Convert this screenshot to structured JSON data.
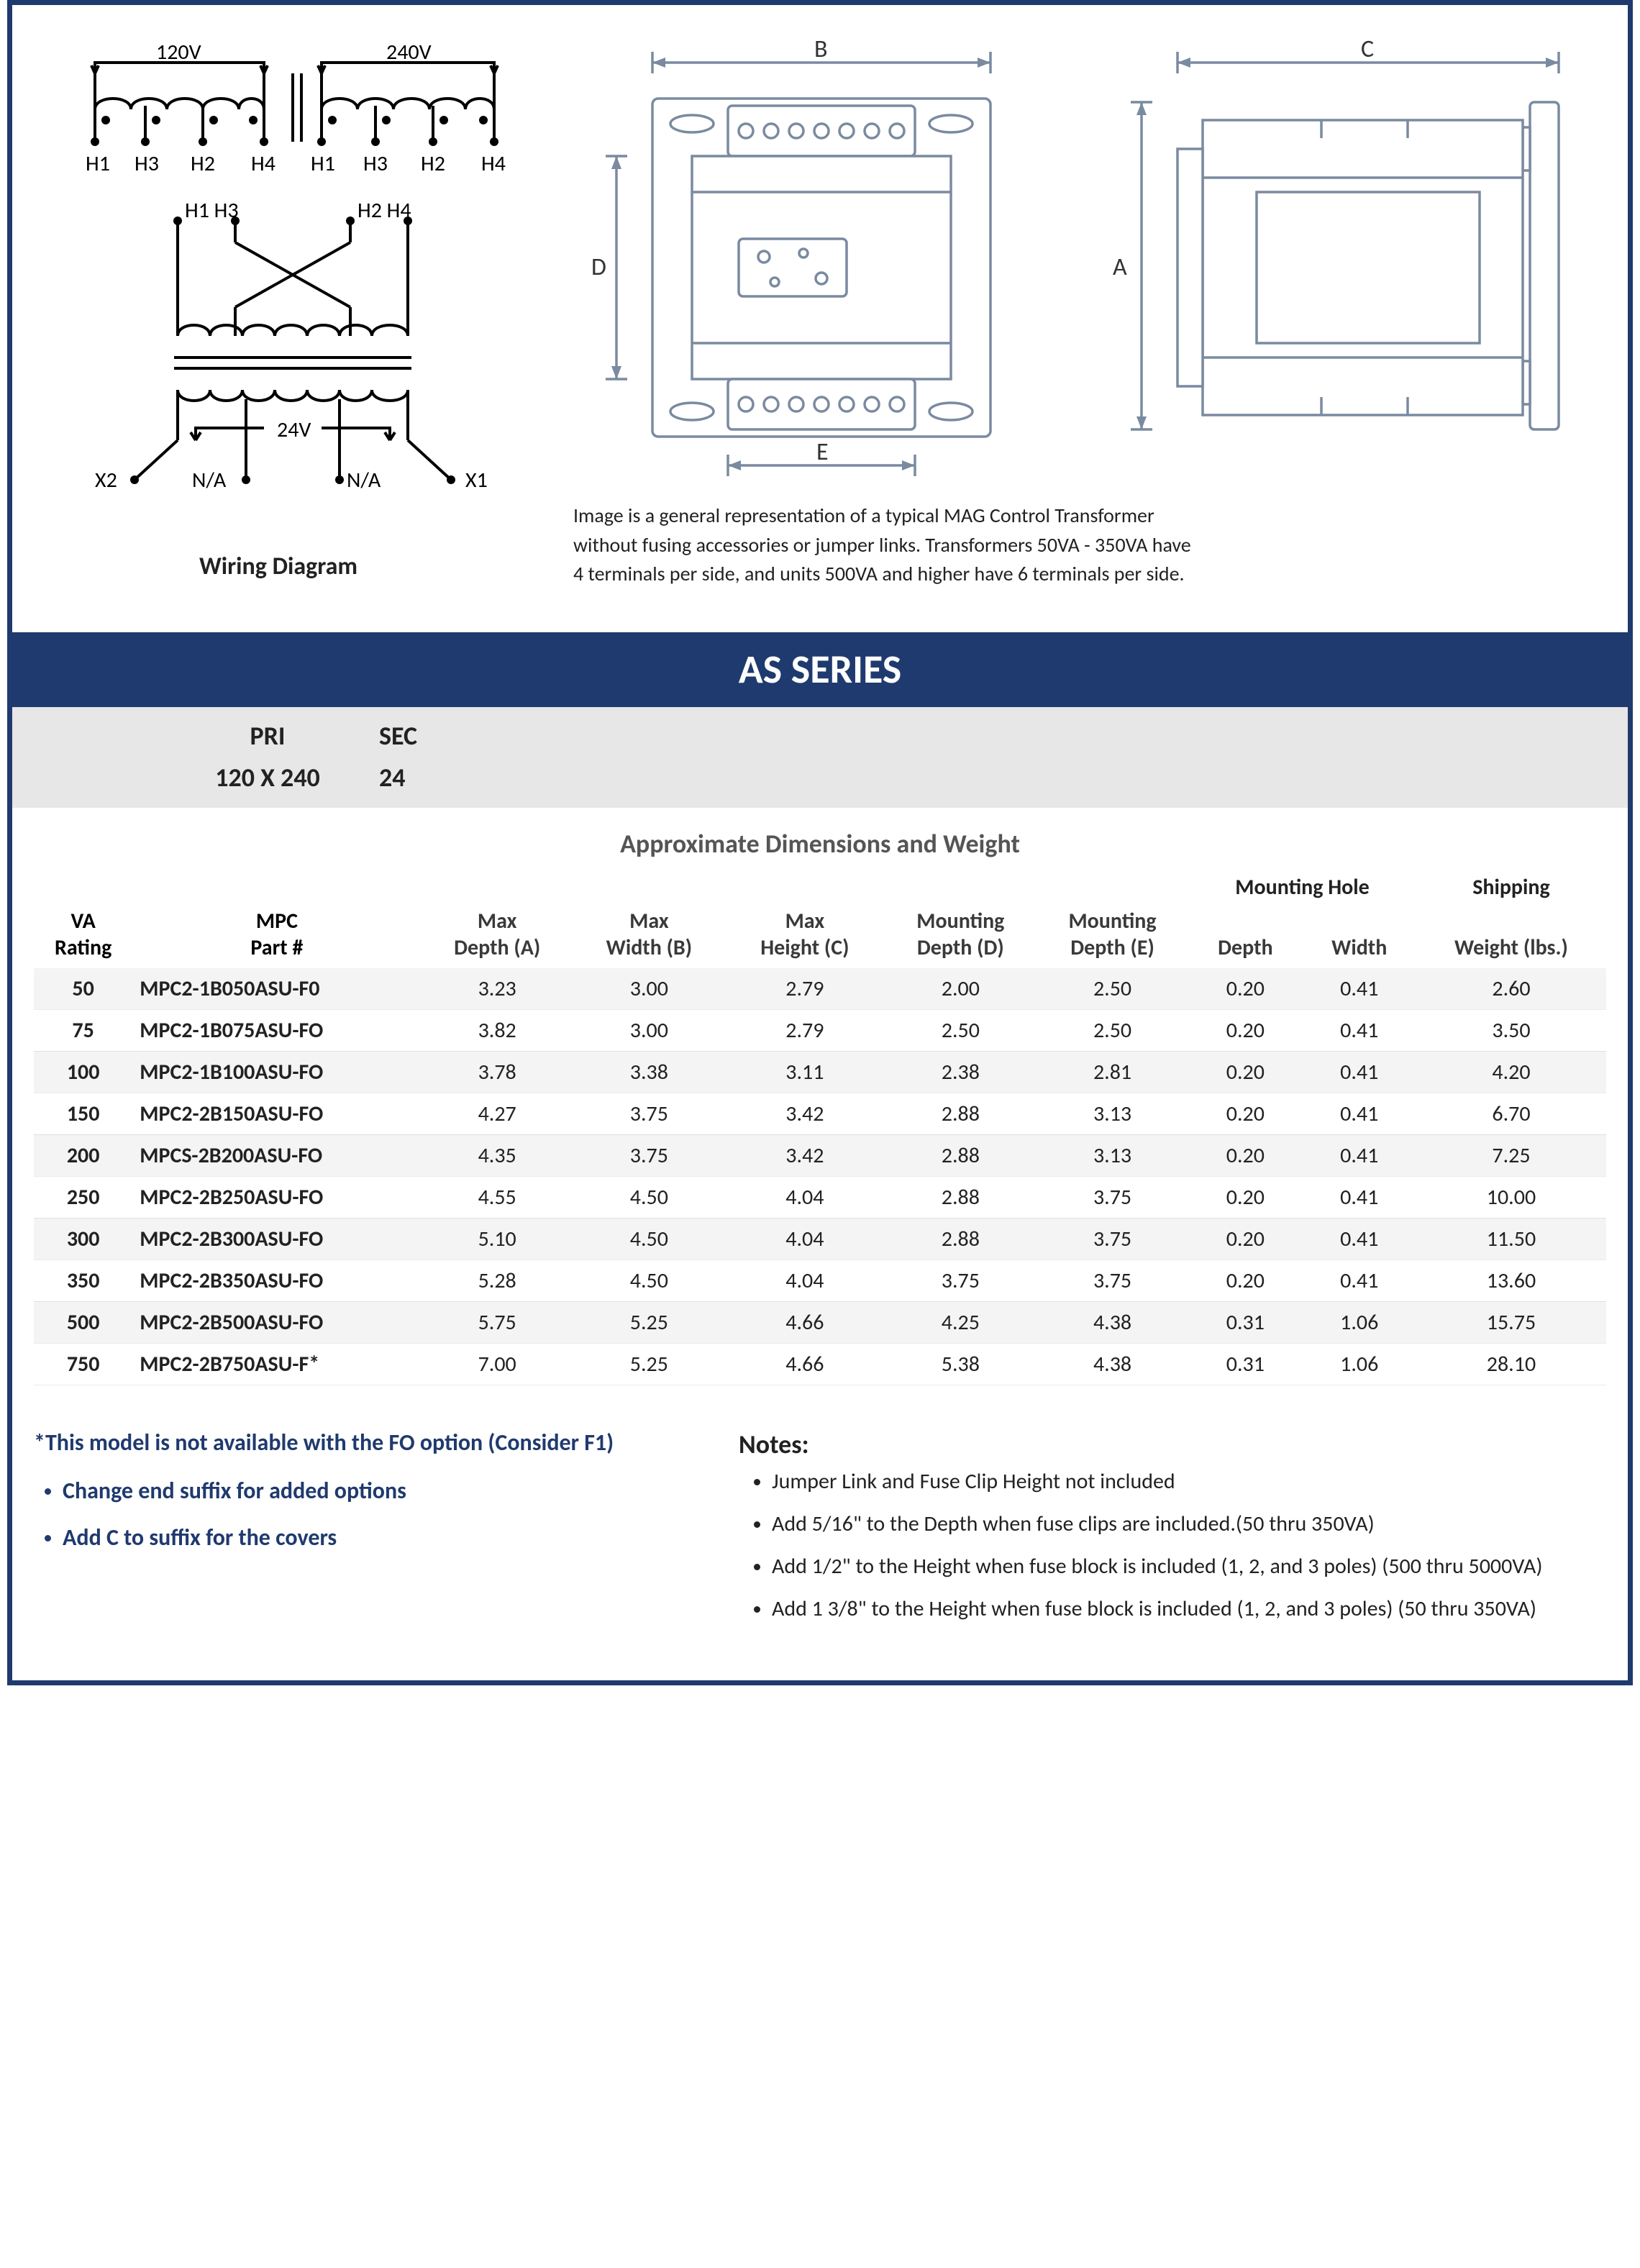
{
  "wiring": {
    "caption": "Wiring Diagram",
    "top_left_v": "120V",
    "top_right_v": "240V",
    "h_terms": [
      "H1",
      "H3",
      "H2",
      "H4",
      "H1",
      "H3",
      "H2",
      "H4"
    ],
    "h1h3": "H1 H3",
    "h2h4": "H2 H4",
    "sec_v": "24V",
    "x2": "X2",
    "x1": "X1",
    "na": "N/A"
  },
  "mech": {
    "caption_line1": "Image is a general representation of a typical MAG Control Transformer",
    "caption_line2": "without fusing accessories or jumper links.  Transformers 50VA - 350VA  have",
    "caption_line3": "4 terminals per side, and units 500VA and higher have 6 terminals per side.",
    "labels": {
      "A": "A",
      "B": "B",
      "C": "C",
      "D": "D",
      "E": "E"
    }
  },
  "series_title": "AS SERIES",
  "prisec": {
    "pri_label": "PRI",
    "sec_label": "SEC",
    "pri_value": "120 X 240",
    "sec_value": "24"
  },
  "dims_caption": "Approximate Dimensions and Weight",
  "table": {
    "group_headers": {
      "mounting_hole": "Mounting Hole",
      "shipping": "Shipping"
    },
    "headers": {
      "va_top": "VA",
      "va_bot": "Rating",
      "mpc_top": "MPC",
      "mpc_bot": "Part #",
      "a_top": "Max",
      "a_bot": "Depth (A)",
      "b_top": "Max",
      "b_bot": "Width (B)",
      "c_top": "Max",
      "c_bot": "Height (C)",
      "d_top": "Mounting",
      "d_bot": "Depth (D)",
      "e_top": "Mounting",
      "e_bot": "Depth (E)",
      "mh_depth": "Depth",
      "mh_width": "Width",
      "weight": "Weight (lbs.)"
    },
    "rows": [
      {
        "va": "50",
        "part": "MPC2-1B050ASU-F0",
        "a": "3.23",
        "b": "3.00",
        "c": "2.79",
        "d": "2.00",
        "e": "2.50",
        "mhd": "0.20",
        "mhw": "0.41",
        "wt": "2.60"
      },
      {
        "va": "75",
        "part": "MPC2-1B075ASU-FO",
        "a": "3.82",
        "b": "3.00",
        "c": "2.79",
        "d": "2.50",
        "e": "2.50",
        "mhd": "0.20",
        "mhw": "0.41",
        "wt": "3.50"
      },
      {
        "va": "100",
        "part": "MPC2-1B100ASU-FO",
        "a": "3.78",
        "b": "3.38",
        "c": "3.11",
        "d": "2.38",
        "e": "2.81",
        "mhd": "0.20",
        "mhw": "0.41",
        "wt": "4.20"
      },
      {
        "va": "150",
        "part": "MPC2-2B150ASU-FO",
        "a": "4.27",
        "b": "3.75",
        "c": "3.42",
        "d": "2.88",
        "e": "3.13",
        "mhd": "0.20",
        "mhw": "0.41",
        "wt": "6.70"
      },
      {
        "va": "200",
        "part": "MPCS-2B200ASU-FO",
        "a": "4.35",
        "b": "3.75",
        "c": "3.42",
        "d": "2.88",
        "e": "3.13",
        "mhd": "0.20",
        "mhw": "0.41",
        "wt": "7.25"
      },
      {
        "va": "250",
        "part": "MPC2-2B250ASU-FO",
        "a": "4.55",
        "b": "4.50",
        "c": "4.04",
        "d": "2.88",
        "e": "3.75",
        "mhd": "0.20",
        "mhw": "0.41",
        "wt": "10.00"
      },
      {
        "va": "300",
        "part": "MPC2-2B300ASU-FO",
        "a": "5.10",
        "b": "4.50",
        "c": "4.04",
        "d": "2.88",
        "e": "3.75",
        "mhd": "0.20",
        "mhw": "0.41",
        "wt": "11.50"
      },
      {
        "va": "350",
        "part": "MPC2-2B350ASU-FO",
        "a": "5.28",
        "b": "4.50",
        "c": "4.04",
        "d": "3.75",
        "e": "3.75",
        "mhd": "0.20",
        "mhw": "0.41",
        "wt": "13.60"
      },
      {
        "va": "500",
        "part": "MPC2-2B500ASU-FO",
        "a": "5.75",
        "b": "5.25",
        "c": "4.66",
        "d": "4.25",
        "e": "4.38",
        "mhd": "0.31",
        "mhw": "1.06",
        "wt": "15.75"
      },
      {
        "va": "750",
        "part": "MPC2-2B750ASU-F*",
        "a": "7.00",
        "b": "5.25",
        "c": "4.66",
        "d": "5.38",
        "e": "4.38",
        "mhd": "0.31",
        "mhw": "1.06",
        "wt": "28.10"
      }
    ]
  },
  "footer_left": {
    "star_note": "*This model is not available with the FO option (Consider F1)",
    "bullets": [
      "Change end suffix for added options",
      "Add C to suffix for the covers"
    ]
  },
  "footer_right": {
    "title": "Notes:",
    "bullets": [
      "Jumper Link and Fuse Clip Height not included",
      "Add 5/16\" to the Depth when fuse clips are included.(50 thru 350VA)",
      "Add 1/2\" to the Height when fuse block is included (1, 2, and 3 poles) (500 thru 5000VA)",
      "Add 1 3/8\" to the Height when fuse block is included (1, 2, and 3 poles) (50 thru 350VA)"
    ]
  },
  "colors": {
    "brand": "#1f3a6e",
    "header_bg": "#e7e7e8",
    "row_stripe": "#f4f4f5",
    "text_muted": "#555"
  }
}
